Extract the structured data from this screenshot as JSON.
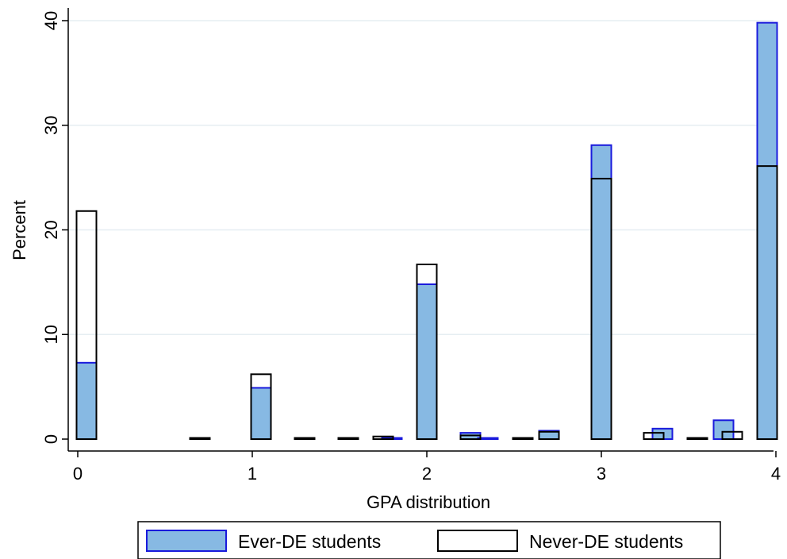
{
  "chart_data": {
    "type": "bar",
    "xlabel": "GPA distribution",
    "ylabel": "Percent",
    "xlim": [
      0,
      4
    ],
    "ylim": [
      0,
      40
    ],
    "x_ticks": [
      "0",
      "1",
      "2",
      "3",
      "4"
    ],
    "y_ticks": [
      "0",
      "10",
      "20",
      "30",
      "40"
    ],
    "grid": true,
    "legend_position": "bottom",
    "series": [
      {
        "name": "Ever-DE students",
        "fill": "#87b9e3",
        "stroke": "#1a1adc",
        "points": [
          {
            "x": 0.05,
            "y": 7.3
          },
          {
            "x": 1.05,
            "y": 4.9
          },
          {
            "x": 1.3,
            "y": 0.1
          },
          {
            "x": 1.8,
            "y": 0.1
          },
          {
            "x": 2.0,
            "y": 14.8
          },
          {
            "x": 2.25,
            "y": 0.6
          },
          {
            "x": 2.35,
            "y": 0.1
          },
          {
            "x": 2.7,
            "y": 0.8
          },
          {
            "x": 3.0,
            "y": 28.1
          },
          {
            "x": 3.35,
            "y": 1.0
          },
          {
            "x": 3.7,
            "y": 1.8
          },
          {
            "x": 3.95,
            "y": 39.8
          }
        ]
      },
      {
        "name": "Never-DE students",
        "fill": "none",
        "stroke": "#000000",
        "points": [
          {
            "x": 0.05,
            "y": 21.8
          },
          {
            "x": 0.7,
            "y": 0.1
          },
          {
            "x": 1.05,
            "y": 6.2
          },
          {
            "x": 1.3,
            "y": 0.1
          },
          {
            "x": 1.55,
            "y": 0.05
          },
          {
            "x": 1.75,
            "y": 0.25
          },
          {
            "x": 2.0,
            "y": 16.7
          },
          {
            "x": 2.25,
            "y": 0.35
          },
          {
            "x": 2.55,
            "y": 0.05
          },
          {
            "x": 2.7,
            "y": 0.7
          },
          {
            "x": 3.0,
            "y": 24.9
          },
          {
            "x": 3.3,
            "y": 0.6
          },
          {
            "x": 3.55,
            "y": 0.05
          },
          {
            "x": 3.75,
            "y": 0.7
          },
          {
            "x": 3.95,
            "y": 26.1
          }
        ]
      }
    ]
  }
}
